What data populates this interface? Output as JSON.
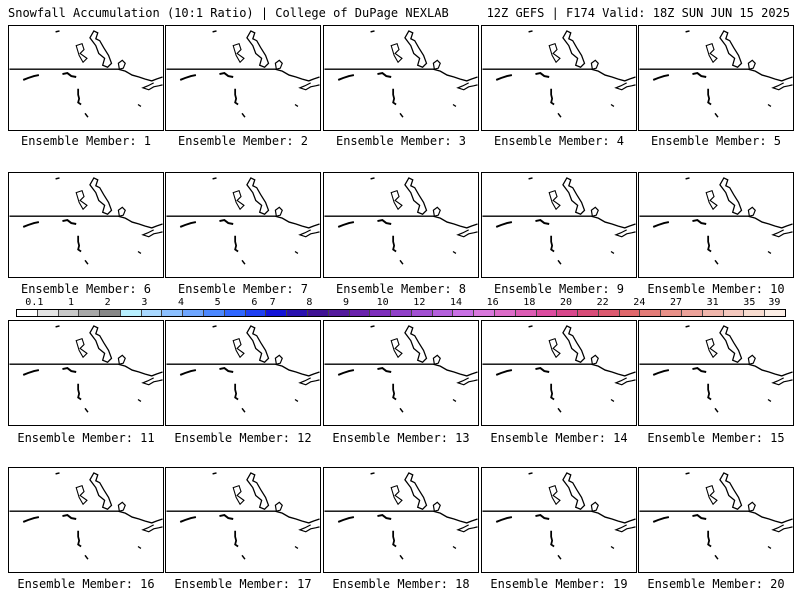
{
  "header": {
    "title_left": "Snowfall Accumulation (10:1 Ratio) | College of DuPage NEXLAB",
    "title_right": "12Z GEFS | F174 Valid: 18Z SUN JUN 15 2025"
  },
  "members": [
    {
      "label": "Ensemble Member: 1",
      "snowfall": "none"
    },
    {
      "label": "Ensemble Member: 2",
      "snowfall": "none"
    },
    {
      "label": "Ensemble Member: 3",
      "snowfall": "none"
    },
    {
      "label": "Ensemble Member: 4",
      "snowfall": "none"
    },
    {
      "label": "Ensemble Member: 5",
      "snowfall": "none"
    },
    {
      "label": "Ensemble Member: 6",
      "snowfall": "none"
    },
    {
      "label": "Ensemble Member: 7",
      "snowfall": "none"
    },
    {
      "label": "Ensemble Member: 8",
      "snowfall": "none"
    },
    {
      "label": "Ensemble Member: 9",
      "snowfall": "none"
    },
    {
      "label": "Ensemble Member: 10",
      "snowfall": "none"
    },
    {
      "label": "Ensemble Member: 11",
      "snowfall": "none"
    },
    {
      "label": "Ensemble Member: 12",
      "snowfall": "none"
    },
    {
      "label": "Ensemble Member: 13",
      "snowfall": "none"
    },
    {
      "label": "Ensemble Member: 14",
      "snowfall": "none"
    },
    {
      "label": "Ensemble Member: 15",
      "snowfall": "none"
    },
    {
      "label": "Ensemble Member: 16",
      "snowfall": "none"
    },
    {
      "label": "Ensemble Member: 17",
      "snowfall": "none"
    },
    {
      "label": "Ensemble Member: 18",
      "snowfall": "none"
    },
    {
      "label": "Ensemble Member: 19",
      "snowfall": "none"
    },
    {
      "label": "Ensemble Member: 20",
      "snowfall": "none"
    }
  ],
  "colorbar": {
    "labels": [
      "0.1",
      "1",
      "2",
      "3",
      "4",
      "5",
      "6",
      "7",
      "8",
      "9",
      "10",
      "12",
      "14",
      "16",
      "18",
      "20",
      "22",
      "24",
      "27",
      "31",
      "35",
      "39"
    ],
    "colors": [
      "#ffffff",
      "#e4e4e4",
      "#c8c8c8",
      "#a8a8a8",
      "#888888",
      "#b8f0ff",
      "#a8d8ff",
      "#8cc0ff",
      "#6ea6ff",
      "#4c88ff",
      "#2f66ff",
      "#1f40f2",
      "#1414d8",
      "#2a12b0",
      "#401294",
      "#541a9c",
      "#6a22ac",
      "#7e2ebc",
      "#9040c8",
      "#a250d2",
      "#b460dc",
      "#c870e4",
      "#d878dc",
      "#dc6cc8",
      "#dc5cb4",
      "#dc4ca0",
      "#d8488c",
      "#d84c78",
      "#dc5a70",
      "#e0686c",
      "#e47c78",
      "#e89088",
      "#eca29a",
      "#f0b6ac",
      "#f4c8be",
      "#f8dcd0",
      "#fceee6"
    ]
  },
  "map": {
    "coastline_color": "#000000"
  }
}
